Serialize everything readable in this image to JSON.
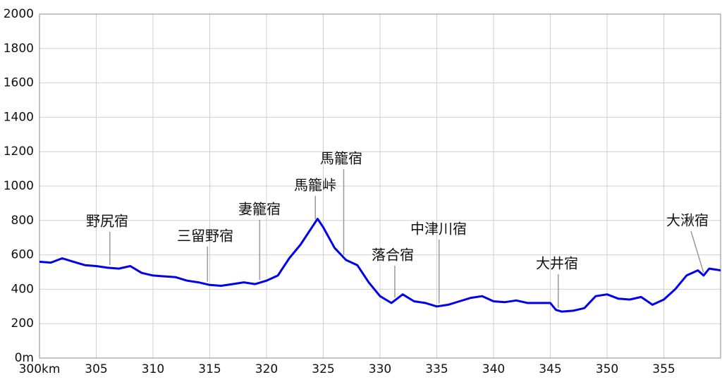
{
  "chart_data": {
    "type": "line",
    "xlim": [
      300,
      360
    ],
    "xticks": [
      {
        "value": 300,
        "label": "300km"
      },
      305,
      310,
      315,
      320,
      325,
      330,
      335,
      340,
      345,
      350,
      355
    ],
    "ylim": [
      0,
      2000
    ],
    "yticks": [
      {
        "value": 0,
        "label": "0m"
      },
      200,
      400,
      600,
      800,
      1000,
      1200,
      1400,
      1600,
      1800,
      2000
    ],
    "grid": true,
    "series": [
      {
        "color": "#0000ee",
        "x": [
          300,
          301,
          302,
          303,
          304,
          305,
          306,
          307,
          308,
          309,
          310,
          311,
          312,
          313,
          314,
          315,
          316,
          317,
          318,
          319,
          320,
          321,
          322,
          323,
          324,
          324.5,
          325,
          326,
          327,
          328,
          329,
          330,
          331,
          332,
          333,
          334,
          335,
          336,
          337,
          338,
          339,
          340,
          341,
          342,
          343,
          344,
          345,
          345.5,
          346,
          347,
          348,
          349,
          350,
          351,
          352,
          353,
          354,
          355,
          356,
          357,
          358,
          358.5,
          359,
          360
        ],
        "values": [
          560,
          555,
          580,
          560,
          540,
          535,
          525,
          520,
          535,
          495,
          480,
          475,
          470,
          450,
          440,
          425,
          420,
          430,
          440,
          430,
          450,
          480,
          580,
          660,
          760,
          810,
          760,
          640,
          570,
          540,
          440,
          360,
          320,
          370,
          330,
          320,
          300,
          310,
          330,
          350,
          360,
          330,
          325,
          335,
          320,
          320,
          320,
          280,
          270,
          275,
          290,
          360,
          370,
          345,
          340,
          355,
          310,
          340,
          400,
          480,
          510,
          480,
          520,
          510
        ]
      }
    ],
    "annotations": [
      {
        "text": "野尻宿",
        "x": 306.2
      },
      {
        "text": "三留野宿",
        "x": 314.8
      },
      {
        "text": "妻籠宿",
        "x": 319.4
      },
      {
        "text": "馬籠峠",
        "x": 324.3
      },
      {
        "text": "馬籠宿",
        "x": 326.8
      },
      {
        "text": "落合宿",
        "x": 331.3
      },
      {
        "text": "中津川宿",
        "x": 335.2
      },
      {
        "text": "大井宿",
        "x": 345.7
      },
      {
        "text": "大湫宿",
        "x": 358.5
      }
    ]
  }
}
